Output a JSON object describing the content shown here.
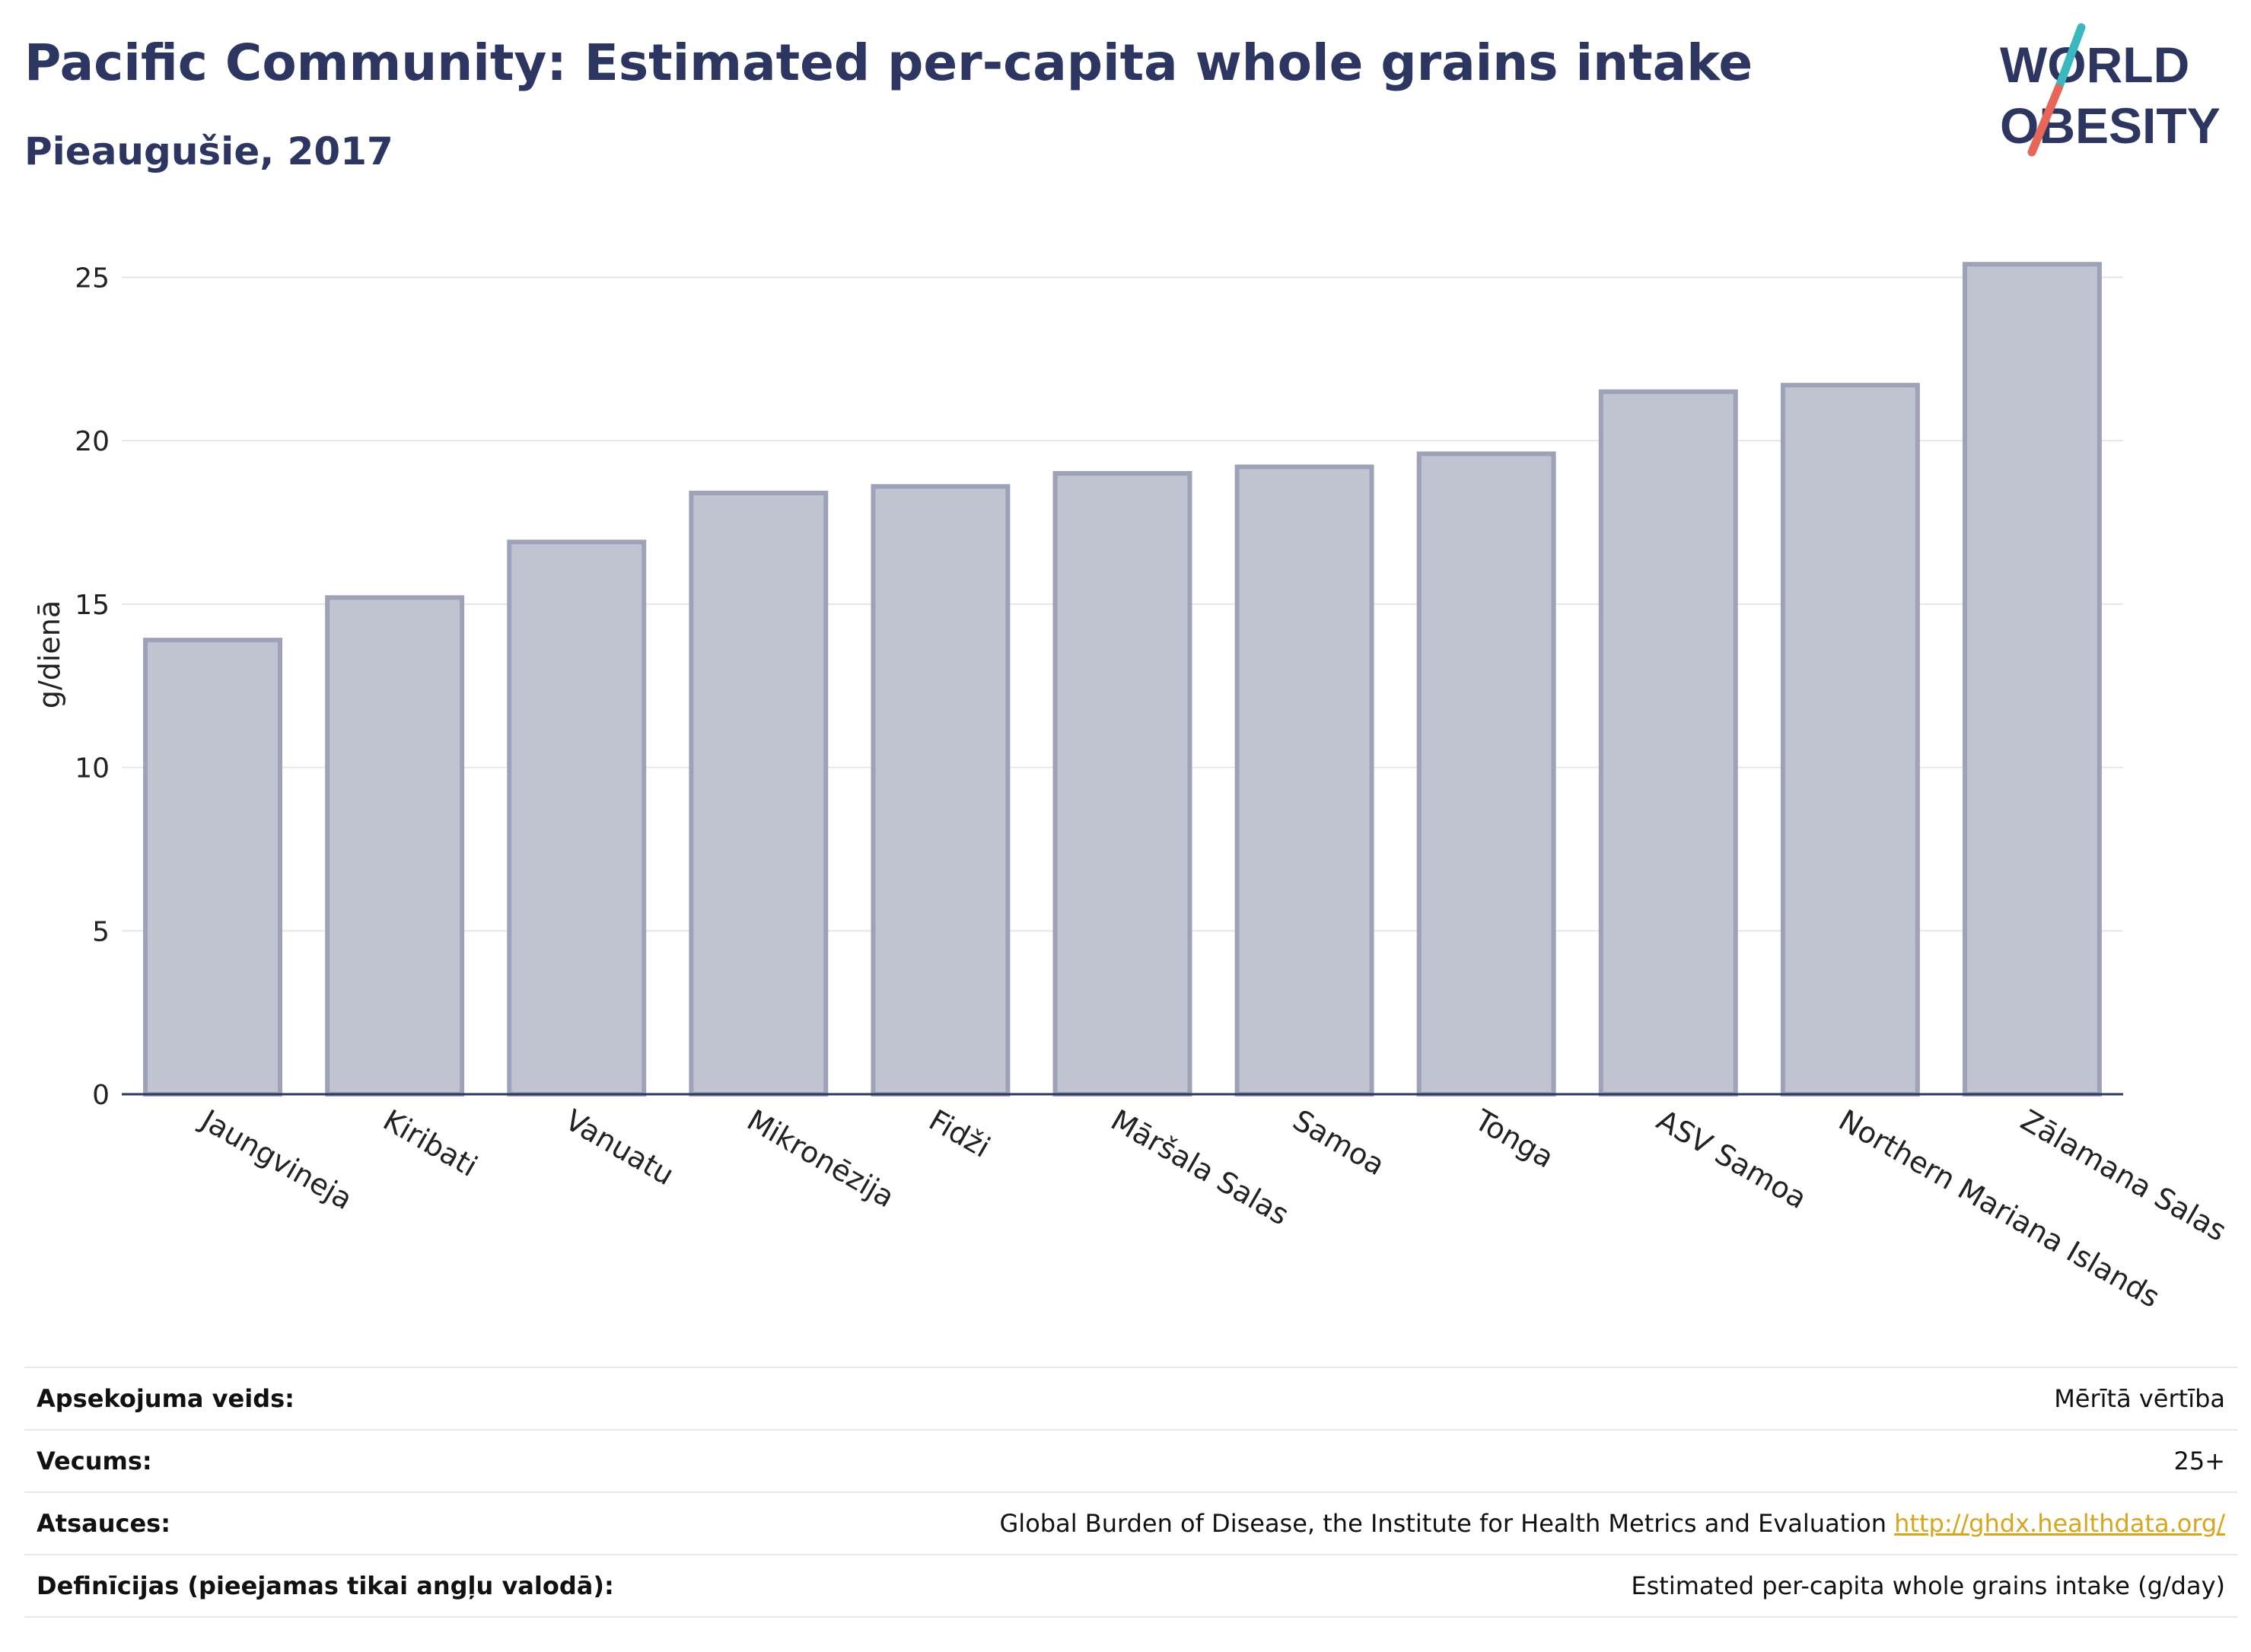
{
  "header": {
    "title": "Pacific Community: Estimated per-capita whole grains intake",
    "subtitle": "Pieaugušie, 2017"
  },
  "logo": {
    "line1": "WORLD",
    "line2": "OBESITY",
    "accent_teal": "#3ab7bf",
    "accent_coral": "#e8655a",
    "text_color": "#2d3561"
  },
  "chart_data": {
    "type": "bar",
    "categories": [
      "Jaungvineja",
      "Kiribati",
      "Vanuatu",
      "Mikronēzija",
      "Fidži",
      "Māršala Salas",
      "Samoa",
      "Tonga",
      "ASV Samoa",
      "Northern Mariana Islands",
      "Zālamana Salas"
    ],
    "values": [
      13.9,
      15.2,
      16.9,
      18.4,
      18.6,
      19.0,
      19.2,
      19.6,
      21.5,
      21.7,
      25.4
    ],
    "ylabel": "g/dienā",
    "ylim": [
      0,
      26.5
    ],
    "yticks": [
      0,
      5,
      10,
      15,
      20,
      25
    ],
    "grid": true,
    "bar_fill": "#c0c3d0",
    "bar_stroke": "#9da2b8",
    "axis_color": "#2d3561"
  },
  "info": {
    "rows": [
      {
        "key": "Apsekojuma veids:",
        "value": "Mērītā vērtība"
      },
      {
        "key": "Vecums:",
        "value": "25+"
      },
      {
        "key": "Atsauces:",
        "value": "Global Burden of Disease, the Institute for Health Metrics and Evaluation",
        "link": "http://ghdx.healthdata.org/"
      },
      {
        "key": "Definīcijas (pieejamas tikai angļu valodā):",
        "value": "Estimated per-capita whole grains intake (g/day)"
      }
    ]
  }
}
